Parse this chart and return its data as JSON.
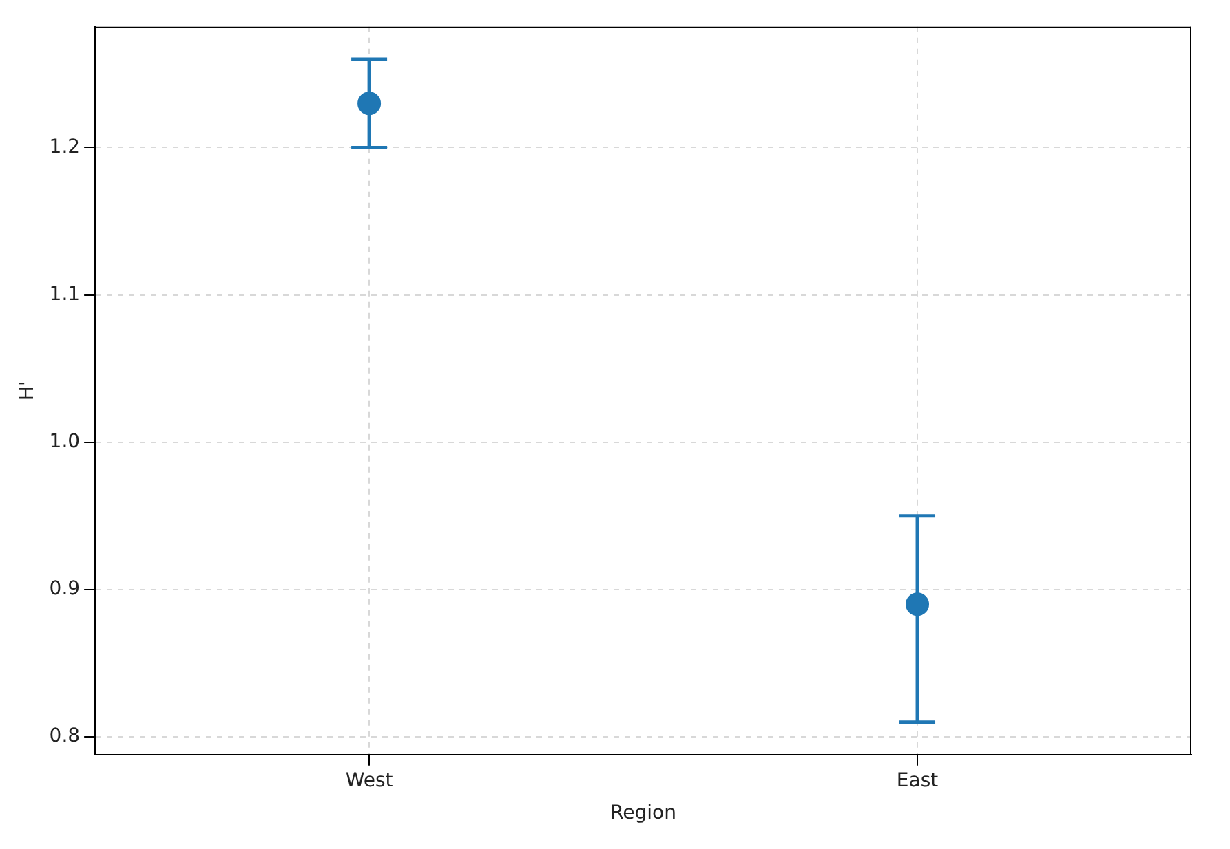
{
  "chart_data": {
    "type": "scatter",
    "xlabel": "Region",
    "ylabel": "H'",
    "categories": [
      "West",
      "East"
    ],
    "series": [
      {
        "color": "#1f77b4",
        "values": [
          1.23,
          0.89
        ],
        "errors": [
          [
            1.2,
            1.26
          ],
          [
            0.81,
            0.95
          ]
        ]
      }
    ],
    "ylim": [
      0.788,
      1.282
    ],
    "yticks": [
      {
        "value": 0.8,
        "label": "0.8"
      },
      {
        "value": 0.9,
        "label": "0.9"
      },
      {
        "value": 1.0,
        "label": "1.0"
      },
      {
        "value": 1.1,
        "label": "1.1"
      },
      {
        "value": 1.2,
        "label": "1.2"
      }
    ],
    "grid": true,
    "marker": "circle",
    "legend": false
  }
}
